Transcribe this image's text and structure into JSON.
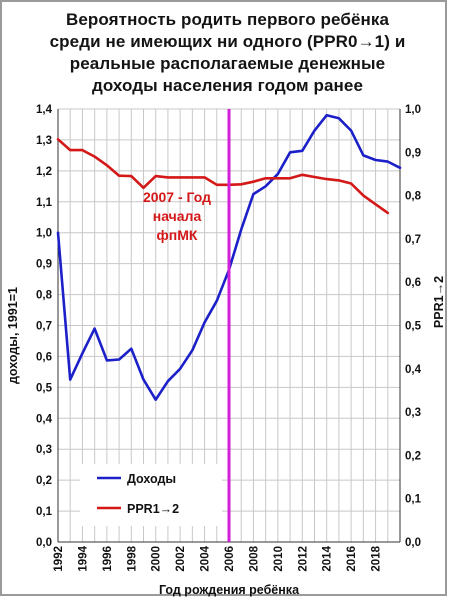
{
  "title_lines": [
    "Вероятность родить первого ребёнка",
    "среди не имеющих ни одного (PPR0→1) и",
    "реальные располагаемые денежные",
    "доходы населения годом ранее"
  ],
  "colors": {
    "income": "#1c20c8",
    "ppr": "#d41818",
    "marker": "#d020d8",
    "grid": "#c8c8c8"
  },
  "chart_data": {
    "type": "line",
    "xlabel": "Год рождения ребёнка",
    "ylabel_left": "доходы, 1991=1",
    "ylabel_right": "PPR1→2",
    "xlim": [
      1992,
      2020
    ],
    "ylim_left": [
      0,
      1.4
    ],
    "ylim_right": [
      0,
      1.0
    ],
    "x_ticks": [
      "1992",
      "1994",
      "1996",
      "1998",
      "2000",
      "2002",
      "2004",
      "2006",
      "2008",
      "2010",
      "2012",
      "2014",
      "2016",
      "2018"
    ],
    "y_ticks_left": [
      "0,0",
      "0,1",
      "0,2",
      "0,3",
      "0,4",
      "0,5",
      "0,6",
      "0,7",
      "0,8",
      "0,9",
      "1,0",
      "1,1",
      "1,2",
      "1,3",
      "1,4"
    ],
    "y_ticks_right": [
      "0,0",
      "0,1",
      "0,2",
      "0,3",
      "0,4",
      "0,5",
      "0,6",
      "0,7",
      "0,8",
      "0,9",
      "1,0"
    ],
    "grid": true,
    "legend_position": "bottom-left",
    "series": [
      {
        "name": "Доходы",
        "axis": "left",
        "x": [
          1992,
          1993,
          1994,
          1995,
          1996,
          1997,
          1998,
          1999,
          2000,
          2001,
          2002,
          2003,
          2004,
          2005,
          2006,
          2007,
          2008,
          2009,
          2010,
          2011,
          2012,
          2013,
          2014,
          2015,
          2016,
          2017,
          2018,
          2019,
          2020
        ],
        "values": [
          1.0,
          0.525,
          0.61,
          0.69,
          0.587,
          0.59,
          0.625,
          0.525,
          0.46,
          0.52,
          0.56,
          0.62,
          0.71,
          0.78,
          0.88,
          1.01,
          1.125,
          1.15,
          1.19,
          1.26,
          1.265,
          1.33,
          1.38,
          1.37,
          1.33,
          1.25,
          1.235,
          1.23,
          1.21
        ]
      },
      {
        "name": "PPR1→2",
        "axis": "right",
        "x": [
          1992,
          1993,
          1994,
          1995,
          1996,
          1997,
          1998,
          1999,
          2000,
          2001,
          2002,
          2003,
          2004,
          2005,
          2006,
          2007,
          2008,
          2009,
          2010,
          2011,
          2012,
          2013,
          2014,
          2015,
          2016,
          2017,
          2018,
          2019
        ],
        "values": [
          0.93,
          0.905,
          0.905,
          0.89,
          0.87,
          0.846,
          0.845,
          0.818,
          0.845,
          0.842,
          0.842,
          0.842,
          0.842,
          0.825,
          0.825,
          0.826,
          0.832,
          0.84,
          0.84,
          0.84,
          0.848,
          0.843,
          0.838,
          0.835,
          0.828,
          0.8,
          0.78,
          0.76
        ]
      }
    ],
    "annotations": [
      {
        "x": 2006,
        "type": "vline",
        "lines": [
          "2007 - Год",
          "начала",
          "фпМК"
        ]
      }
    ]
  }
}
